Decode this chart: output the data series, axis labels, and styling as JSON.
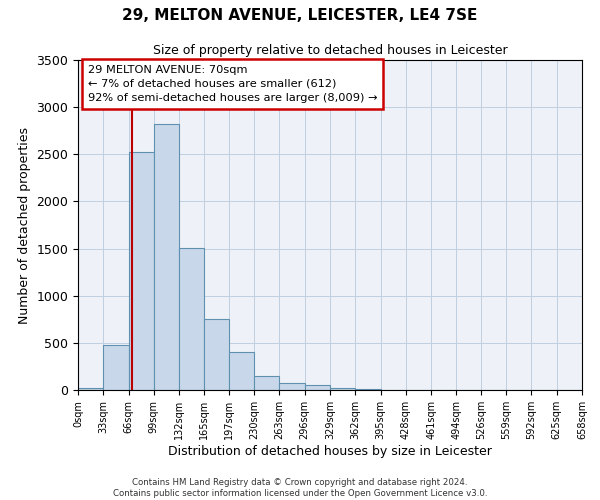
{
  "title": "29, MELTON AVENUE, LEICESTER, LE4 7SE",
  "subtitle": "Size of property relative to detached houses in Leicester",
  "xlabel": "Distribution of detached houses by size in Leicester",
  "ylabel": "Number of detached properties",
  "bar_color": "#c8d8ea",
  "bar_edge_color": "#6090b0",
  "grid_color": "#c0cfe0",
  "background_color": "#eef2f8",
  "bin_edges": [
    0,
    33,
    66,
    99,
    132,
    165,
    197,
    230,
    263,
    296,
    329,
    362,
    395,
    428,
    461,
    494,
    526,
    559,
    592,
    625,
    658
  ],
  "bar_heights": [
    25,
    480,
    2520,
    2820,
    1510,
    755,
    400,
    150,
    75,
    50,
    25,
    10,
    5,
    2,
    1,
    0,
    0,
    0,
    0,
    0
  ],
  "xlim": [
    0,
    658
  ],
  "ylim": [
    0,
    3500
  ],
  "yticks": [
    0,
    500,
    1000,
    1500,
    2000,
    2500,
    3000,
    3500
  ],
  "property_size": 70,
  "red_line_color": "#bb0000",
  "annotation_box_facecolor": "#ffffff",
  "annotation_border_color": "#cc0000",
  "annotation_title": "29 MELTON AVENUE: 70sqm",
  "annotation_line1": "← 7% of detached houses are smaller (612)",
  "annotation_line2": "92% of semi-detached houses are larger (8,009) →",
  "footer_line1": "Contains HM Land Registry data © Crown copyright and database right 2024.",
  "footer_line2": "Contains public sector information licensed under the Open Government Licence v3.0.",
  "xtick_labels": [
    "0sqm",
    "33sqm",
    "66sqm",
    "99sqm",
    "132sqm",
    "165sqm",
    "197sqm",
    "230sqm",
    "263sqm",
    "296sqm",
    "329sqm",
    "362sqm",
    "395sqm",
    "428sqm",
    "461sqm",
    "494sqm",
    "526sqm",
    "559sqm",
    "592sqm",
    "625sqm",
    "658sqm"
  ]
}
